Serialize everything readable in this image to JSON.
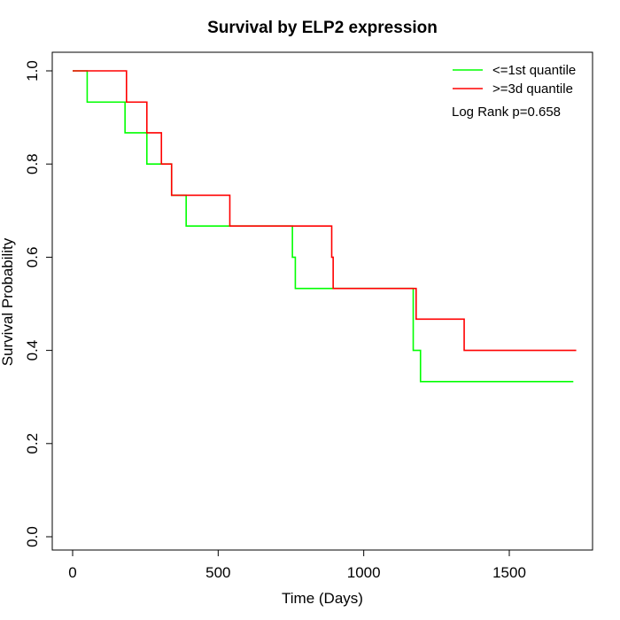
{
  "chart_data": {
    "type": "line",
    "title": "Survival by ELP2 expression",
    "xlabel": "Time (Days)",
    "ylabel": "Survival Probability",
    "xlim": [
      0,
      1750
    ],
    "ylim": [
      0,
      1
    ],
    "x_ticks": [
      0,
      500,
      1000,
      1500
    ],
    "y_ticks": [
      0.0,
      0.2,
      0.4,
      0.6,
      0.8,
      1.0
    ],
    "x_tick_labels": [
      "0",
      "500",
      "1000",
      "1500"
    ],
    "y_tick_labels": [
      "0.0",
      "0.2",
      "0.4",
      "0.6",
      "0.8",
      "1.0"
    ],
    "grid": false,
    "step": true,
    "legend_position": "top-right",
    "annotation": "Log Rank p=0.658",
    "series": [
      {
        "name": "<=1st quantile",
        "color": "#00ff00",
        "x": [
          0,
          50,
          180,
          255,
          340,
          390,
          755,
          765,
          1170,
          1195,
          1720
        ],
        "y": [
          1.0,
          0.933,
          0.867,
          0.8,
          0.733,
          0.667,
          0.6,
          0.533,
          0.4,
          0.333,
          0.333
        ]
      },
      {
        "name": ">=3d quantile",
        "color": "#ff0000",
        "x": [
          0,
          185,
          255,
          305,
          340,
          540,
          890,
          895,
          1180,
          1345,
          1730
        ],
        "y": [
          1.0,
          0.933,
          0.867,
          0.8,
          0.733,
          0.667,
          0.6,
          0.533,
          0.467,
          0.4,
          0.4
        ]
      }
    ]
  }
}
